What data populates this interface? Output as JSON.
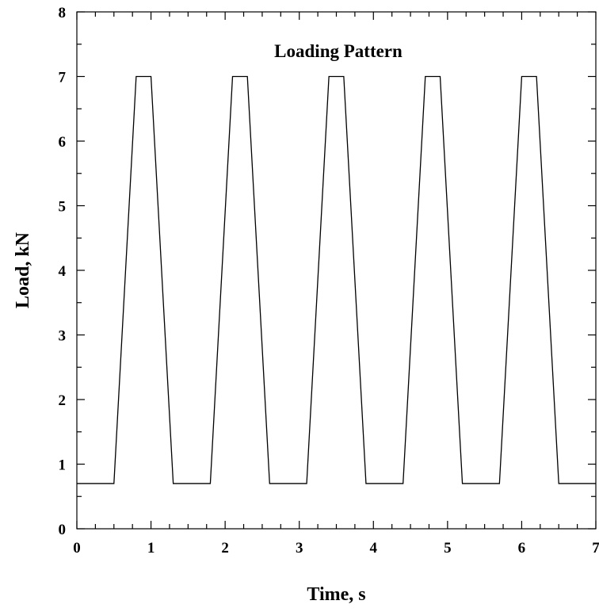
{
  "chart_data": {
    "type": "line",
    "title": "Loading Pattern",
    "xlabel": "Time, s",
    "ylabel": "Load, kN",
    "xlim": [
      0,
      7
    ],
    "ylim": [
      0,
      8
    ],
    "x_major_ticks": [
      0,
      1,
      2,
      3,
      4,
      5,
      6,
      7
    ],
    "y_major_ticks": [
      0,
      1,
      2,
      3,
      4,
      5,
      6,
      7,
      8
    ],
    "x_minor_step": 0.25,
    "y_minor_step": 0.5,
    "grid": false,
    "series": [
      {
        "color": "#000000",
        "x": [
          0,
          0.5,
          0.8,
          1.0,
          1.3,
          1.8,
          2.1,
          2.3,
          2.6,
          3.1,
          3.4,
          3.6,
          3.9,
          4.4,
          4.7,
          4.9,
          5.2,
          5.7,
          6.0,
          6.2,
          6.5,
          7.0
        ],
        "y": [
          0.7,
          0.7,
          7.0,
          7.0,
          0.7,
          0.7,
          7.0,
          7.0,
          0.7,
          0.7,
          7.0,
          7.0,
          0.7,
          0.7,
          7.0,
          7.0,
          0.7,
          0.7,
          7.0,
          7.0,
          0.7,
          0.7
        ]
      }
    ]
  }
}
